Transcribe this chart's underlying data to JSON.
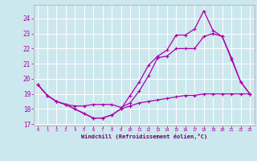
{
  "xlabel": "Windchill (Refroidissement éolien,°C)",
  "bg_color": "#cce8ee",
  "line_color": "#aa00aa",
  "x": [
    0,
    1,
    2,
    3,
    4,
    5,
    6,
    7,
    8,
    9,
    10,
    11,
    12,
    13,
    14,
    15,
    16,
    17,
    18,
    19,
    20,
    21,
    22,
    23
  ],
  "line1": [
    19.6,
    18.9,
    18.5,
    18.3,
    18.0,
    17.7,
    17.4,
    17.4,
    17.6,
    18.0,
    18.2,
    18.4,
    18.5,
    18.6,
    18.7,
    18.8,
    18.9,
    18.9,
    19.0,
    19.0,
    19.0,
    19.0,
    19.0,
    19.0
  ],
  "line2": [
    19.6,
    18.9,
    18.5,
    18.3,
    18.0,
    17.7,
    17.4,
    17.4,
    17.6,
    18.0,
    18.9,
    19.8,
    20.9,
    21.5,
    21.9,
    22.9,
    22.9,
    23.3,
    24.5,
    23.2,
    22.8,
    21.4,
    19.8,
    19.0
  ],
  "line3": [
    19.6,
    18.9,
    18.5,
    18.3,
    18.2,
    18.2,
    18.3,
    18.3,
    18.3,
    18.1,
    18.4,
    19.2,
    20.2,
    21.4,
    21.5,
    22.0,
    22.0,
    22.0,
    22.8,
    23.0,
    22.8,
    21.3,
    19.8,
    19.0
  ],
  "ylim_low": 16.9,
  "ylim_high": 24.9,
  "yticks": [
    17,
    18,
    19,
    20,
    21,
    22,
    23,
    24
  ],
  "xtick_labels": [
    "0",
    "1",
    "2",
    "3",
    "4",
    "5",
    "6",
    "7",
    "8",
    "9",
    "10",
    "11",
    "12",
    "13",
    "14",
    "15",
    "16",
    "17",
    "18",
    "19",
    "20",
    "21",
    "22",
    "23"
  ]
}
